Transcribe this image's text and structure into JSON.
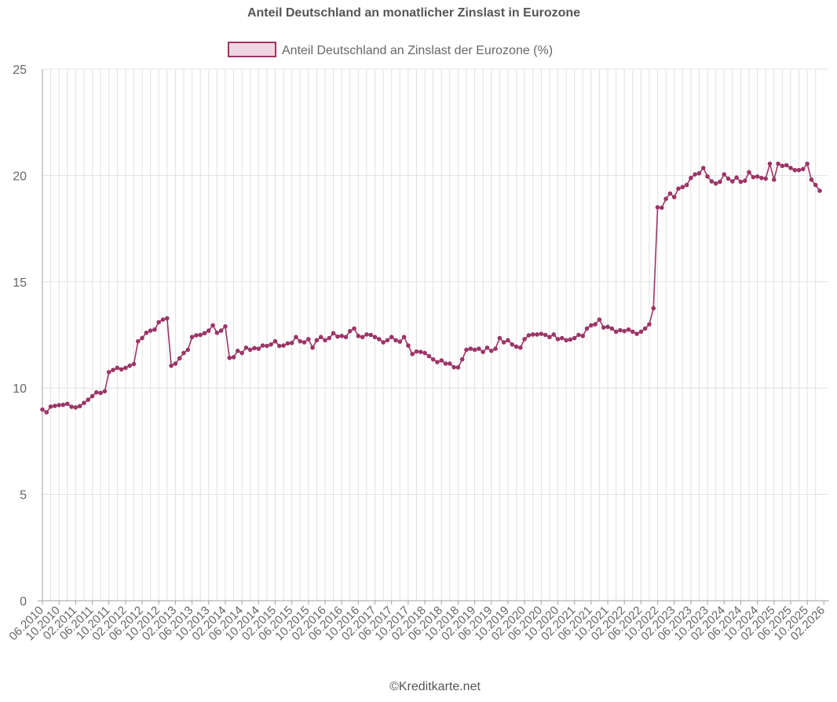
{
  "chart_data": {
    "type": "line",
    "title": "Anteil Deutschland an monatlicher Zinslast in Eurozone",
    "credit": "©Kreditkarte.net",
    "legend": {
      "position": "top"
    },
    "series": [
      {
        "name": "Anteil Deutschland an Zinslast der Eurozone (%)",
        "color": "#9c3566",
        "fill": "#f0d6e1",
        "start_month": "06.2010",
        "values": [
          8.99,
          8.86,
          9.13,
          9.16,
          9.2,
          9.21,
          9.26,
          9.12,
          9.09,
          9.15,
          9.3,
          9.45,
          9.62,
          9.8,
          9.77,
          9.85,
          10.75,
          10.85,
          10.95,
          10.88,
          10.95,
          11.05,
          11.13,
          12.2,
          12.35,
          12.6,
          12.7,
          12.75,
          13.1,
          13.22,
          13.28,
          11.05,
          11.15,
          11.4,
          11.65,
          11.8,
          12.4,
          12.48,
          12.5,
          12.58,
          12.7,
          12.95,
          12.6,
          12.7,
          12.9,
          11.42,
          11.45,
          11.75,
          11.65,
          11.9,
          11.8,
          11.88,
          11.85,
          12.0,
          11.98,
          12.05,
          12.2,
          11.98,
          12.0,
          12.1,
          12.12,
          12.4,
          12.2,
          12.15,
          12.3,
          11.9,
          12.25,
          12.4,
          12.25,
          12.35,
          12.58,
          12.42,
          12.45,
          12.4,
          12.68,
          12.8,
          12.45,
          12.4,
          12.52,
          12.5,
          12.4,
          12.3,
          12.15,
          12.25,
          12.4,
          12.25,
          12.18,
          12.4,
          12.0,
          11.6,
          11.72,
          11.7,
          11.65,
          11.5,
          11.35,
          11.22,
          11.3,
          11.15,
          11.15,
          10.98,
          10.97,
          11.35,
          11.8,
          11.85,
          11.8,
          11.85,
          11.7,
          11.9,
          11.75,
          11.85,
          12.35,
          12.15,
          12.25,
          12.05,
          11.95,
          11.9,
          12.3,
          12.48,
          12.52,
          12.52,
          12.55,
          12.5,
          12.4,
          12.52,
          12.3,
          12.35,
          12.25,
          12.28,
          12.35,
          12.5,
          12.45,
          12.8,
          12.95,
          13.0,
          13.22,
          12.85,
          12.88,
          12.8,
          12.65,
          12.72,
          12.68,
          12.75,
          12.65,
          12.55,
          12.65,
          12.8,
          13.0,
          13.75,
          18.5,
          18.48,
          18.9,
          19.15,
          18.98,
          19.38,
          19.45,
          19.55,
          19.88,
          20.05,
          20.1,
          20.35,
          19.95,
          19.72,
          19.62,
          19.7,
          20.05,
          19.85,
          19.72,
          19.9,
          19.7,
          19.75,
          20.15,
          19.92,
          19.95,
          19.88,
          19.85,
          20.55,
          19.8,
          20.55,
          20.45,
          20.48,
          20.35,
          20.25,
          20.25,
          20.3,
          20.55,
          19.8,
          19.55,
          19.28
        ]
      }
    ],
    "x_tick_labels": [
      "06.2010",
      "10.2010",
      "02.2011",
      "06.2011",
      "10.2011",
      "02.2012",
      "06.2012",
      "10.2012",
      "02.2013",
      "06.2013",
      "10.2013",
      "02.2014",
      "06.2014",
      "10.2014",
      "02.2015",
      "06.2015",
      "10.2015",
      "02.2016",
      "06.2016",
      "10.2016",
      "02.2017",
      "06.2017",
      "10.2017",
      "02.2018",
      "06.2018",
      "10.2018",
      "02.2019",
      "06.2019",
      "10.2019",
      "02.2020",
      "06.2020",
      "10.2020",
      "02.2021",
      "06.2021",
      "10.2021",
      "02.2022",
      "06.2022",
      "10.2022",
      "02.2023",
      "06.2023",
      "10.2023",
      "02.2024",
      "06.2024",
      "10.2024",
      "02.2025",
      "06.2025",
      "10.2025",
      "02.2026"
    ],
    "x_tick_every_months": 4,
    "y_ticks": [
      "0",
      "5",
      "10",
      "15",
      "20",
      "25"
    ],
    "ylim": [
      0,
      25
    ],
    "grid": true
  }
}
